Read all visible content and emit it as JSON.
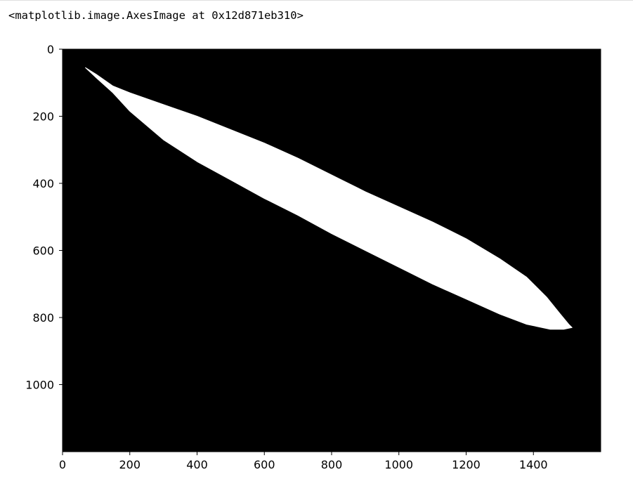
{
  "output": {
    "repr": "<matplotlib.image.AxesImage at 0x12d871eb310>"
  },
  "chart_data": {
    "type": "heatmap",
    "title": "",
    "xlabel": "",
    "ylabel": "",
    "colormap": "gray",
    "background_value": 0,
    "foreground_value": 255,
    "image_width": 1600,
    "image_height": 1200,
    "xlim": [
      0,
      1600
    ],
    "ylim": [
      1200,
      0
    ],
    "y_inverted": true,
    "xticks": [
      0,
      200,
      400,
      600,
      800,
      1000,
      1200,
      1400
    ],
    "yticks": [
      0,
      200,
      400,
      600,
      800,
      1000
    ],
    "grid": false,
    "mask_region": {
      "description": "white elongated leaf-shaped region",
      "upper_edge": [
        [
          68,
          55
        ],
        [
          100,
          75
        ],
        [
          150,
          110
        ],
        [
          200,
          130
        ],
        [
          300,
          165
        ],
        [
          400,
          200
        ],
        [
          500,
          240
        ],
        [
          600,
          280
        ],
        [
          700,
          325
        ],
        [
          800,
          375
        ],
        [
          900,
          425
        ],
        [
          1000,
          470
        ],
        [
          1100,
          515
        ],
        [
          1200,
          565
        ],
        [
          1300,
          625
        ],
        [
          1380,
          680
        ],
        [
          1440,
          740
        ],
        [
          1480,
          790
        ],
        [
          1505,
          820
        ],
        [
          1515,
          830
        ]
      ],
      "lower_edge": [
        [
          1515,
          830
        ],
        [
          1490,
          835
        ],
        [
          1450,
          835
        ],
        [
          1380,
          820
        ],
        [
          1300,
          790
        ],
        [
          1200,
          745
        ],
        [
          1100,
          700
        ],
        [
          1000,
          650
        ],
        [
          900,
          600
        ],
        [
          800,
          550
        ],
        [
          700,
          495
        ],
        [
          600,
          445
        ],
        [
          500,
          390
        ],
        [
          400,
          335
        ],
        [
          300,
          270
        ],
        [
          200,
          185
        ],
        [
          150,
          130
        ],
        [
          100,
          85
        ],
        [
          68,
          55
        ]
      ]
    }
  }
}
